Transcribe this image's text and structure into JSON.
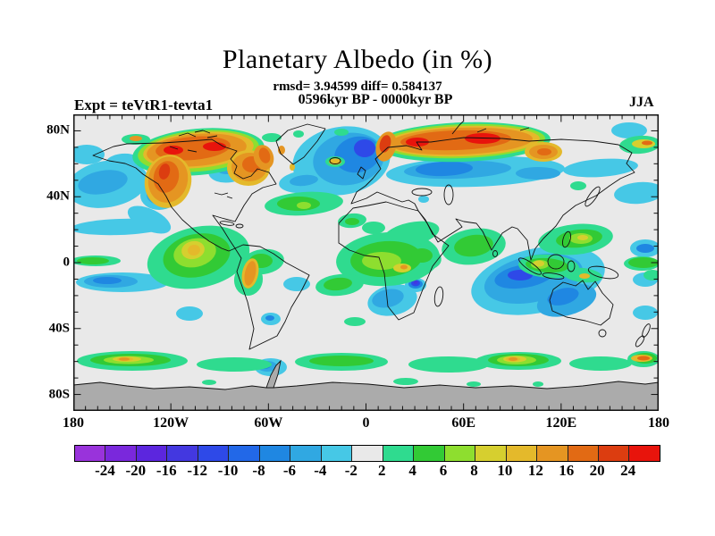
{
  "title": "Planetary Albedo (in %)",
  "subtitle": {
    "stats": "rmsd= 3.94599 diff= 0.584137",
    "period": "0596kyr BP - 0000kyr BP"
  },
  "experiment_label": "Expt = teVtR1-tevta1",
  "season": "JJA",
  "axes": {
    "lat_ticks": [
      {
        "label": "80N",
        "lat": 80
      },
      {
        "label": "40N",
        "lat": 40
      },
      {
        "label": "0",
        "lat": 0
      },
      {
        "label": "40S",
        "lat": -40
      },
      {
        "label": "80S",
        "lat": -80
      }
    ],
    "lon_ticks": [
      {
        "label": "180",
        "lon": -180
      },
      {
        "label": "120W",
        "lon": -120
      },
      {
        "label": "60W",
        "lon": -60
      },
      {
        "label": "0",
        "lon": 0
      },
      {
        "label": "60E",
        "lon": 60
      },
      {
        "label": "120E",
        "lon": 120
      },
      {
        "label": "180",
        "lon": 180
      }
    ],
    "lat_minor_step_deg": 10,
    "lon_minor_step_deg": 7.5
  },
  "colorbar": {
    "boundary_labels": [
      "-24",
      "-20",
      "-16",
      "-12",
      "-10",
      "-8",
      "-6",
      "-4",
      "-2",
      "2",
      "4",
      "6",
      "8",
      "10",
      "12",
      "16",
      "20",
      "24"
    ],
    "colors": [
      "#9933DB",
      "#7A28DC",
      "#5C26DE",
      "#4338E0",
      "#2E49E8",
      "#2268E8",
      "#1F87E2",
      "#30A8E2",
      "#46C8E6",
      "#E9E9E9",
      "#2FDB8F",
      "#32CA35",
      "#8EDE2F",
      "#D6CF2F",
      "#E4B92B",
      "#E59522",
      "#E26A14",
      "#DC3D10",
      "#E8140C"
    ]
  },
  "map_colors": {
    "background": "#E9E9E9",
    "antarctica_mask": "#ABABAB",
    "coastline": "#111111",
    "frame": "#111111"
  },
  "chart_data": {
    "type": "filled_contour_map",
    "variable": "Planetary Albedo difference",
    "units": "%",
    "title": "Planetary Albedo (in %)",
    "rmsd": 3.94599,
    "diff": 0.584137,
    "comparison": "0596kyr BP - 0000kyr BP",
    "season": "JJA",
    "experiment": "teVtR1-tevta1",
    "projection": "equirectangular",
    "lon_range": [
      -180,
      180
    ],
    "lat_range": [
      -90,
      90
    ],
    "contour_levels": [
      -24,
      -20,
      -16,
      -12,
      -10,
      -8,
      -6,
      -4,
      -2,
      2,
      4,
      6,
      8,
      10,
      12,
      16,
      20,
      24
    ],
    "palette": [
      "#9933DB",
      "#7A28DC",
      "#5C26DE",
      "#4338E0",
      "#2E49E8",
      "#2268E8",
      "#1F87E2",
      "#30A8E2",
      "#46C8E6",
      "#E9E9E9",
      "#2FDB8F",
      "#32CA35",
      "#8EDE2F",
      "#D6CF2F",
      "#E4B92B",
      "#E59522",
      "#E26A14",
      "#DC3D10",
      "#E8140C"
    ],
    "neutral_band": "-2 to +2 rendered as light gray",
    "notable_positive_anomalies": [
      {
        "region": "Canadian Arctic Archipelago / Baffin / Quebec",
        "value": "+16 to +24"
      },
      {
        "region": "Northern Siberia and Scandinavian Arctic coast",
        "value": "+16 to +24"
      },
      {
        "region": "Gulf of Alaska / southern Alaska",
        "value": "+12 to +20"
      },
      {
        "region": "Central America and NW South America (Andes)",
        "value": "+4 to +16"
      },
      {
        "region": "Sahel / equatorial Africa",
        "value": "+2 to +10"
      },
      {
        "region": "SE Asia, Indonesia, Japan region",
        "value": "+2 to +8"
      },
      {
        "region": "Southern Ocean band near 55S (cores near 120W, 75E, 175E)",
        "value": "+2 to +12"
      },
      {
        "region": "Iceland",
        "value": "+8 to +12"
      }
    ],
    "notable_negative_anomalies": [
      {
        "region": "North Atlantic / Norwegian-Barents Sea",
        "value": "-6 to -12"
      },
      {
        "region": "Mid-latitude Russia band (50-60N)",
        "value": "-4 to -8"
      },
      {
        "region": "North Pacific / Bering Sea",
        "value": "-2 to -6"
      },
      {
        "region": "NE Pacific off British Columbia",
        "value": "-8 to -14"
      },
      {
        "region": "Eastern Indian Ocean / NW Australia",
        "value": "-4 to -10"
      },
      {
        "region": "Southern Africa interior and Zanzibar coast spot",
        "value": "-4 to -12"
      },
      {
        "region": "Hudson Bay",
        "value": "-2 to -6"
      },
      {
        "region": "Tropical East Pacific bands",
        "value": "-2 to -8"
      }
    ]
  }
}
